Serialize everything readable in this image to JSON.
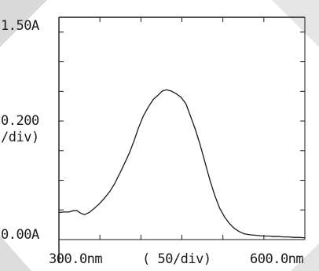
{
  "chart_data": {
    "type": "line",
    "title": "",
    "xlabel": "( 50/div)",
    "ylabel": "0.200\n/div)",
    "y_label_line1": "0.200",
    "y_label_line2": "/div)",
    "y_top_label": "1.50A",
    "y_bottom_label": "0.00A",
    "x_left_label": "300.0nm",
    "x_right_label": "600.0nm",
    "xlim": [
      300,
      600
    ],
    "ylim": [
      0,
      1.5
    ],
    "grid": false,
    "legend": "none",
    "line_color": "#1a1a1a",
    "series": [
      {
        "x": [
          300,
          306,
          312,
          318,
          322,
          326,
          331,
          337,
          343,
          349,
          355,
          362,
          368,
          374,
          380,
          386,
          392,
          397,
          403,
          409,
          415,
          421,
          426,
          431,
          437,
          443,
          449,
          455,
          460,
          466,
          472,
          478,
          484,
          490,
          496,
          502,
          508,
          514,
          520,
          526,
          532,
          538,
          544,
          550,
          556,
          562,
          568,
          574,
          580,
          586,
          592,
          600
        ],
        "y": [
          0.183,
          0.186,
          0.186,
          0.195,
          0.195,
          0.18,
          0.168,
          0.183,
          0.21,
          0.24,
          0.276,
          0.324,
          0.378,
          0.444,
          0.513,
          0.585,
          0.672,
          0.753,
          0.834,
          0.894,
          0.945,
          0.975,
          1.002,
          1.011,
          1.002,
          0.984,
          0.96,
          0.915,
          0.84,
          0.75,
          0.645,
          0.525,
          0.405,
          0.3,
          0.213,
          0.153,
          0.108,
          0.075,
          0.054,
          0.039,
          0.033,
          0.03,
          0.027,
          0.024,
          0.024,
          0.021,
          0.021,
          0.018,
          0.018,
          0.015,
          0.015,
          0.012
        ]
      }
    ]
  }
}
